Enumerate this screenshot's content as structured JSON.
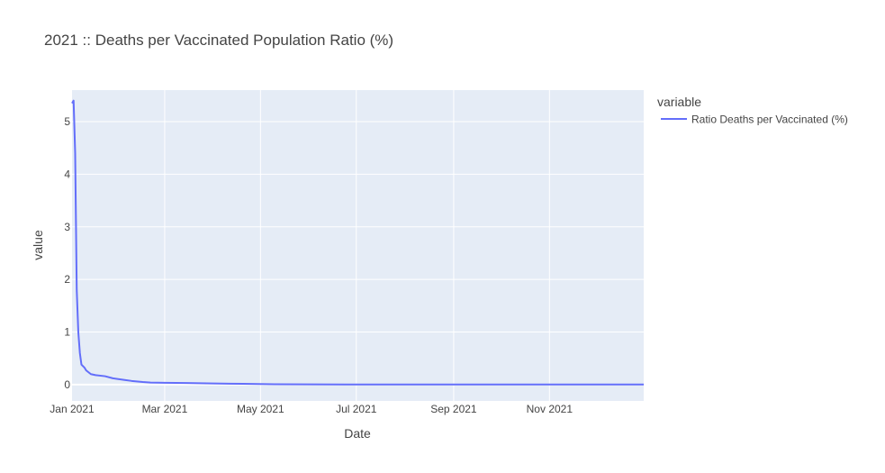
{
  "chart_data": {
    "type": "line",
    "title": "2021 :: Deaths per Vaccinated Population Ratio (%)",
    "xlabel": "Date",
    "ylabel": "value",
    "xlim": [
      "2021-01-01",
      "2021-12-31"
    ],
    "ylim": [
      -0.31,
      5.6
    ],
    "x_ticks": [
      {
        "value": "2021-01-01",
        "label": "Jan 2021"
      },
      {
        "value": "2021-03-01",
        "label": "Mar 2021"
      },
      {
        "value": "2021-05-01",
        "label": "May 2021"
      },
      {
        "value": "2021-07-01",
        "label": "Jul 2021"
      },
      {
        "value": "2021-09-01",
        "label": "Sep 2021"
      },
      {
        "value": "2021-11-01",
        "label": "Nov 2021"
      }
    ],
    "y_ticks": [
      {
        "value": 0,
        "label": "0"
      },
      {
        "value": 1,
        "label": "1"
      },
      {
        "value": 2,
        "label": "2"
      },
      {
        "value": 3,
        "label": "3"
      },
      {
        "value": 4,
        "label": "4"
      },
      {
        "value": 5,
        "label": "5"
      }
    ],
    "grid": true,
    "background_color": "#e5ecf6",
    "grid_color": "#ffffff",
    "legend": {
      "title": "variable",
      "position": "right"
    },
    "series": [
      {
        "name": "Ratio Deaths per Vaccinated (%)",
        "color": "#636efa",
        "x": [
          "2021-01-01",
          "2021-01-02",
          "2021-01-03",
          "2021-01-04",
          "2021-01-05",
          "2021-01-06",
          "2021-01-07",
          "2021-01-08",
          "2021-01-09",
          "2021-01-10",
          "2021-01-13",
          "2021-01-16",
          "2021-01-22",
          "2021-01-27",
          "2021-02-03",
          "2021-02-08",
          "2021-02-15",
          "2021-02-20",
          "2021-03-01",
          "2021-03-15",
          "2021-04-01",
          "2021-04-20",
          "2021-05-10",
          "2021-06-01",
          "2021-07-01",
          "2021-08-01",
          "2021-09-01",
          "2021-10-01",
          "2021-11-01",
          "2021-12-01",
          "2021-12-31"
        ],
        "y": [
          5.35,
          5.4,
          4.4,
          1.8,
          1.0,
          0.6,
          0.38,
          0.35,
          0.32,
          0.27,
          0.2,
          0.18,
          0.16,
          0.12,
          0.09,
          0.07,
          0.05,
          0.04,
          0.035,
          0.03,
          0.022,
          0.015,
          0.008,
          0.004,
          0.003,
          0.002,
          0.002,
          0.002,
          0.002,
          0.002,
          0.002
        ]
      }
    ]
  }
}
